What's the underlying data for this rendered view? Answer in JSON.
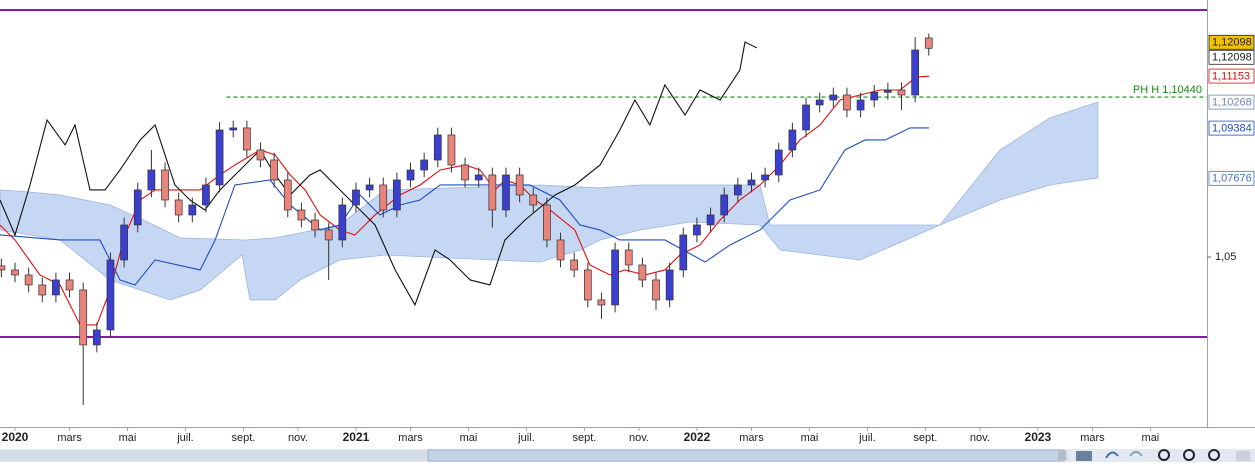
{
  "chart_data": {
    "type": "candlestick",
    "xlim": [
      2019.956,
      2023.496
    ],
    "ylim": [
      0.9922,
      1.1374
    ],
    "xticks": [
      2020,
      {
        "value": 2020.16,
        "label": "mars"
      },
      {
        "value": 2020.33,
        "label": "mai"
      },
      {
        "value": 2020.5,
        "label": "juil."
      },
      {
        "value": 2020.67,
        "label": "sept."
      },
      {
        "value": 2020.83,
        "label": "nov."
      },
      2021,
      {
        "value": 2021.16,
        "label": "mars"
      },
      {
        "value": 2021.33,
        "label": "mai"
      },
      {
        "value": 2021.5,
        "label": "juil."
      },
      {
        "value": 2021.67,
        "label": "sept."
      },
      {
        "value": 2021.83,
        "label": "nov."
      },
      2022,
      {
        "value": 2022.16,
        "label": "mars"
      },
      {
        "value": 2022.33,
        "label": "mai"
      },
      {
        "value": 2022.5,
        "label": "juil."
      },
      {
        "value": 2022.67,
        "label": "sept."
      },
      {
        "value": 2022.83,
        "label": "nov."
      },
      2023,
      {
        "value": 2023.16,
        "label": "mars"
      },
      {
        "value": 2023.33,
        "label": "mai"
      }
    ],
    "yticks": [
      {
        "value": 1.05,
        "label": "1,05"
      }
    ],
    "up_color": "#3a3fcf",
    "down_color": "#e8847c",
    "x": [
      2019.96,
      2020,
      2020.04,
      2020.08,
      2020.12,
      2020.16,
      2020.2,
      2020.24,
      2020.28,
      2020.32,
      2020.36,
      2020.4,
      2020.44,
      2020.48,
      2020.52,
      2020.56,
      2020.6,
      2020.64,
      2020.68,
      2020.72,
      2020.76,
      2020.8,
      2020.84,
      2020.88,
      2020.92,
      2020.96,
      2021,
      2021.04,
      2021.08,
      2021.12,
      2021.16,
      2021.2,
      2021.24,
      2021.28,
      2021.32,
      2021.36,
      2021.4,
      2021.44,
      2021.48,
      2021.52,
      2021.56,
      2021.6,
      2021.64,
      2021.68,
      2021.72,
      2021.76,
      2021.8,
      2021.84,
      2021.88,
      2021.92,
      2021.96,
      2022,
      2022.04,
      2022.08,
      2022.12,
      2022.16,
      2022.2,
      2022.24,
      2022.28,
      2022.32,
      2022.36,
      2022.4,
      2022.44,
      2022.48,
      2022.52,
      2022.56,
      2022.6,
      2022.64,
      2022.68
    ],
    "open": [
      1.047,
      1.0456,
      1.0439,
      1.0405,
      1.0371,
      1.0422,
      1.0388,
      1.0201,
      1.0252,
      1.049,
      1.0609,
      1.0728,
      1.0796,
      1.0694,
      1.0643,
      1.0677,
      1.0745,
      1.0932,
      1.0939,
      1.0864,
      1.083,
      1.0762,
      1.066,
      1.0626,
      1.0592,
      1.0558,
      1.0677,
      1.0728,
      1.0745,
      1.066,
      1.0762,
      1.0796,
      1.083,
      1.0915,
      1.0813,
      1.0762,
      1.0779,
      1.066,
      1.0779,
      1.0711,
      1.0677,
      1.0558,
      1.049,
      1.0456,
      1.0354,
      1.0337,
      1.0524,
      1.0473,
      1.0422,
      1.0354,
      1.0456,
      1.0575,
      1.0609,
      1.0643,
      1.0711,
      1.0745,
      1.0762,
      1.0779,
      1.0864,
      1.0932,
      1.1017,
      1.1034,
      1.1051,
      1.1,
      1.1034,
      1.106,
      1.1068,
      1.1051,
      1.1245
    ],
    "high": [
      1.0495,
      1.0481,
      1.0464,
      1.043,
      1.0447,
      1.0447,
      1.0413,
      1.0277,
      1.0515,
      1.0634,
      1.0753,
      1.0864,
      1.0821,
      1.0719,
      1.0702,
      1.077,
      1.0959,
      1.0964,
      1.0964,
      1.0889,
      1.0855,
      1.0787,
      1.0685,
      1.0651,
      1.0617,
      1.0702,
      1.0753,
      1.077,
      1.077,
      1.0787,
      1.0821,
      1.0855,
      1.094,
      1.094,
      1.0838,
      1.0804,
      1.0804,
      1.0804,
      1.0804,
      1.0736,
      1.0702,
      1.0583,
      1.0515,
      1.0481,
      1.0379,
      1.0549,
      1.0549,
      1.0498,
      1.0447,
      1.0481,
      1.06,
      1.0634,
      1.0668,
      1.0736,
      1.077,
      1.0787,
      1.0804,
      1.0889,
      1.0957,
      1.1042,
      1.1059,
      1.1076,
      1.1076,
      1.1059,
      1.1085,
      1.1093,
      1.1093,
      1.1248,
      1.126
    ],
    "low": [
      1.0431,
      1.0414,
      1.038,
      1.0346,
      1.0346,
      1.0363,
      0.9997,
      1.0176,
      1.0227,
      1.0465,
      1.0584,
      1.0703,
      1.0669,
      1.0618,
      1.0618,
      1.0652,
      1.072,
      1.0907,
      1.0839,
      1.0805,
      1.0737,
      1.0635,
      1.0601,
      1.0567,
      1.0422,
      1.0533,
      1.0652,
      1.0703,
      1.0635,
      1.0635,
      1.0737,
      1.0771,
      1.0805,
      1.0788,
      1.0737,
      1.0737,
      1.06,
      1.0635,
      1.0686,
      1.0652,
      1.0533,
      1.0465,
      1.0431,
      1.0329,
      1.029,
      1.0312,
      1.0448,
      1.0397,
      1.032,
      1.0329,
      1.0431,
      1.055,
      1.0584,
      1.0618,
      1.0686,
      1.072,
      1.0737,
      1.0754,
      1.0839,
      1.0907,
      1.0992,
      1.1009,
      1.0975,
      1.0975,
      1.1009,
      1.1035,
      1.1,
      1.1026,
      1.1185
    ],
    "close": [
      1.0456,
      1.0439,
      1.0405,
      1.0371,
      1.0422,
      1.0388,
      1.0201,
      1.0252,
      1.049,
      1.0609,
      1.0728,
      1.0796,
      1.0694,
      1.0643,
      1.0677,
      1.0745,
      1.0932,
      1.0939,
      1.0864,
      1.083,
      1.0762,
      1.066,
      1.0626,
      1.0592,
      1.0558,
      1.0677,
      1.0728,
      1.0745,
      1.066,
      1.0762,
      1.0796,
      1.083,
      1.0915,
      1.0813,
      1.0762,
      1.0779,
      1.066,
      1.0779,
      1.0711,
      1.0677,
      1.0558,
      1.049,
      1.0456,
      1.0354,
      1.0337,
      1.0524,
      1.0473,
      1.0422,
      1.0354,
      1.0456,
      1.0575,
      1.0609,
      1.0643,
      1.0711,
      1.0745,
      1.0762,
      1.0779,
      1.0864,
      1.0932,
      1.1017,
      1.1034,
      1.1051,
      1.1,
      1.1034,
      1.106,
      1.1068,
      1.1051,
      1.1204,
      1.12098
    ],
    "cloud": {
      "color": "#bcd0f2",
      "upper": {
        "x": [
          2019.956,
          2020.044,
          2020.132,
          2020.279,
          2020.425,
          2020.484,
          2020.675,
          2020.763,
          2020.953,
          2021.085,
          2021.54,
          2021.716,
          2021.833,
          2022.185,
          2022.214,
          2022.713,
          2022.889,
          2023.035,
          2023.176
        ],
        "values": [
          1.0728,
          1.0721,
          1.0711,
          1.0677,
          1.0599,
          1.0565,
          1.0558,
          1.0565,
          1.0609,
          1.0728,
          1.0745,
          1.0735,
          1.0745,
          1.0745,
          1.0609,
          1.0609,
          1.0864,
          1.0973,
          1.1027
        ]
      },
      "lower": {
        "x": [
          2019.956,
          2020.132,
          2020.279,
          2020.455,
          2020.543,
          2020.666,
          2020.689,
          2020.763,
          2020.836,
          2020.953,
          2021.085,
          2021.54,
          2021.657,
          2021.716,
          2021.833,
          2021.979,
          2022.185,
          2022.244,
          2022.478,
          2022.713,
          2022.889,
          2023.035,
          2023.176
        ],
        "values": [
          1.0592,
          1.0558,
          1.0422,
          1.0354,
          1.0388,
          1.0507,
          1.0354,
          1.0354,
          1.0422,
          1.049,
          1.0507,
          1.0483,
          1.0524,
          1.0558,
          1.0592,
          1.0619,
          1.0609,
          1.0524,
          1.049,
          1.0609,
          1.0694,
          1.0745,
          1.0769
        ]
      }
    },
    "series": [
      {
        "color": "#e01010",
        "x": [
          2019.956,
          2020,
          2020.073,
          2020.132,
          2020.191,
          2020.24,
          2020.279,
          2020.323,
          2020.367,
          2020.411,
          2020.543,
          2020.601,
          2020.645,
          2020.719,
          2020.763,
          2020.807,
          2020.851,
          2020.895,
          2020.953,
          2020.997,
          2021.056,
          2021.129,
          2021.188,
          2021.247,
          2021.32,
          2021.364,
          2021.408,
          2021.437,
          2021.481,
          2021.525,
          2021.569,
          2021.642,
          2021.686,
          2021.745,
          2021.789,
          2021.848,
          2021.906,
          2021.95,
          2022.009,
          2022.068,
          2022.126,
          2022.185,
          2022.244,
          2022.302,
          2022.361,
          2022.42,
          2022.478,
          2022.537,
          2022.596,
          2022.643,
          2022.681
        ],
        "values": [
          1.0609,
          1.0558,
          1.0439,
          1.0405,
          1.0269,
          1.0269,
          1.0388,
          1.0575,
          1.0694,
          1.0728,
          1.0728,
          1.0779,
          1.0813,
          1.0864,
          1.0847,
          1.0779,
          1.0728,
          1.0643,
          1.0592,
          1.0575,
          1.0643,
          1.0711,
          1.0745,
          1.0796,
          1.0813,
          1.0796,
          1.0728,
          1.0762,
          1.0745,
          1.0694,
          1.066,
          1.0592,
          1.0473,
          1.0439,
          1.0456,
          1.0439,
          1.0456,
          1.0507,
          1.0541,
          1.0626,
          1.0694,
          1.0745,
          1.0813,
          1.0898,
          1.0949,
          1.1034,
          1.1051,
          1.1068,
          1.1068,
          1.1112,
          1.1115
        ]
      },
      {
        "color": "#1f4fbf",
        "x": [
          2019.956,
          2020.132,
          2020.249,
          2020.308,
          2020.352,
          2020.411,
          2020.543,
          2020.587,
          2020.645,
          2020.748,
          2020.807,
          2020.895,
          2020.953,
          2021.012,
          2021.07,
          2021.129,
          2021.188,
          2021.247,
          2021.51,
          2021.598,
          2021.657,
          2021.716,
          2021.774,
          2021.906,
          2022.024,
          2022.097,
          2022.185,
          2022.273,
          2022.361,
          2022.434,
          2022.493,
          2022.552,
          2022.625,
          2022.681
        ],
        "values": [
          1.0575,
          1.0558,
          1.0558,
          1.0422,
          1.0405,
          1.049,
          1.0456,
          1.0558,
          1.0745,
          1.0762,
          1.0677,
          1.0592,
          1.0609,
          1.0711,
          1.0643,
          1.0677,
          1.0694,
          1.0745,
          1.0745,
          1.0694,
          1.0609,
          1.0592,
          1.0558,
          1.0558,
          1.0483,
          1.0541,
          1.0592,
          1.0694,
          1.0728,
          1.0864,
          1.0898,
          1.0898,
          1.0939,
          1.0939
        ]
      },
      {
        "color": "#111111",
        "x": [
          2019.956,
          2020,
          2020.044,
          2020.094,
          2020.147,
          2020.176,
          2020.22,
          2020.264,
          2020.308,
          2020.367,
          2020.411,
          2020.469,
          2020.513,
          2020.557,
          2020.601,
          2020.66,
          2020.719,
          2020.763,
          2020.807,
          2020.865,
          2020.895,
          2020.968,
          2021.012,
          2021.056,
          2021.115,
          2021.173,
          2021.232,
          2021.276,
          2021.335,
          2021.393,
          2021.437,
          2021.496,
          2021.584,
          2021.642,
          2021.716,
          2021.774,
          2021.818,
          2021.862,
          2021.906,
          2021.965,
          2022.009,
          2022.068,
          2022.126,
          2022.141,
          2022.176
        ],
        "values": [
          1.0694,
          1.0575,
          1.0745,
          1.0966,
          1.0881,
          1.0949,
          1.0728,
          1.0728,
          1.0796,
          1.0898,
          1.0949,
          1.0745,
          1.0694,
          1.066,
          1.0728,
          1.0796,
          1.0864,
          1.0779,
          1.0711,
          1.0779,
          1.0796,
          1.0711,
          1.066,
          1.0609,
          1.0456,
          1.0337,
          1.0524,
          1.049,
          1.0422,
          1.0405,
          1.0558,
          1.0626,
          1.0711,
          1.0745,
          1.0813,
          1.0932,
          1.1034,
          1.0949,
          1.1085,
          1.0983,
          1.1068,
          1.1034,
          1.1136,
          1.1231,
          1.1211
        ]
      }
    ],
    "levels": [
      {
        "value": 1.134,
        "color": "#8a1aa0"
      },
      {
        "value": 1.0228,
        "color": "#8a1aa0"
      }
    ],
    "ph_line": {
      "value": 1.1044,
      "label": "PH H 1,10440",
      "x_start": 2020.62,
      "color": "#138a13"
    },
    "price_labels": [
      {
        "value": 1.12098,
        "label": "1,12098",
        "color": "#222222",
        "background": "#f2c200"
      },
      {
        "value": 1.12098,
        "label": "1,12098",
        "color": "#222222",
        "background": "#ffffff"
      },
      {
        "value": 1.11153,
        "label": "1,11153",
        "color": "#d01010",
        "background": "#ffffff"
      },
      {
        "value": 1.10268,
        "label": "1,10268",
        "color": "#7088b0",
        "background": "#ffffff"
      },
      {
        "value": 1.09384,
        "label": "1,09384",
        "color": "#1f4fbf",
        "background": "#ffffff"
      },
      {
        "value": 1.07676,
        "label": "1,07676",
        "color": "#4a70c0",
        "background": "#ffffff"
      }
    ]
  }
}
